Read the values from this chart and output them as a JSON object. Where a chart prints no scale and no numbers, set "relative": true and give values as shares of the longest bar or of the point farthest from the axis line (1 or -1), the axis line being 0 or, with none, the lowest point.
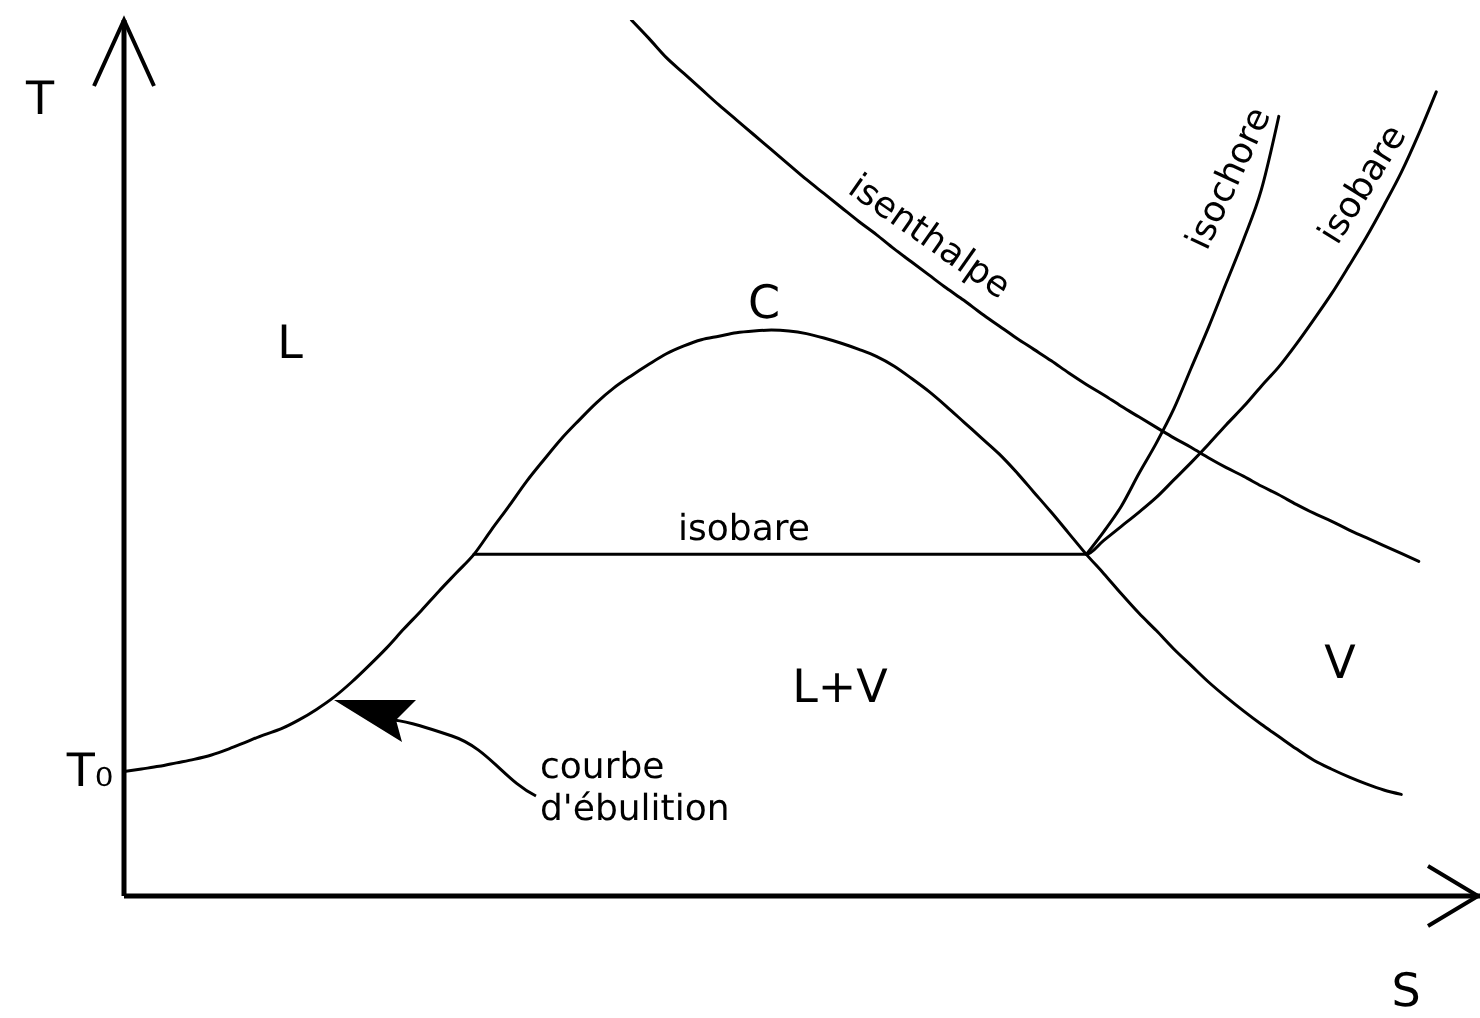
{
  "chart_data": {
    "type": "line",
    "relative": true,
    "xlabel": "S",
    "ylabel": "T",
    "marker": "none",
    "line_style": "solid",
    "categories": [
      null,
      null,
      null,
      null,
      null,
      null,
      null,
      null,
      null,
      null,
      null,
      null,
      null,
      null,
      null,
      null,
      null,
      null,
      null,
      null,
      null,
      null,
      null,
      null,
      null,
      null,
      null,
      null,
      null,
      null,
      null,
      null,
      null,
      null,
      null,
      null,
      null,
      null,
      null,
      null,
      null,
      null,
      null,
      null,
      null,
      null,
      null,
      null,
      null,
      null,
      null,
      null,
      null,
      null,
      null,
      null,
      null,
      null,
      null,
      null,
      null,
      null,
      null,
      null,
      null,
      null,
      null,
      null,
      null,
      null,
      null,
      null,
      null,
      null,
      null,
      null,
      null,
      null
    ],
    "series": [
      {
        "color": "#000000",
        "values": [
          0.142,
          0.145,
          0.148,
          0.152,
          0.156,
          0.161,
          0.168,
          0.176,
          0.184,
          0.191,
          0.201,
          0.213,
          0.227,
          0.244,
          0.263,
          0.283,
          0.305,
          0.326,
          0.348,
          0.369,
          0.39,
          0.418,
          0.445,
          0.473,
          0.498,
          0.522,
          0.543,
          0.563,
          0.58,
          0.594,
          0.607,
          0.619,
          0.628,
          0.635,
          0.639,
          0.643,
          0.645,
          0.646,
          0.645,
          0.642,
          0.637,
          0.631,
          0.624,
          0.616,
          0.605,
          0.591,
          0.576,
          0.559,
          0.541,
          0.523,
          0.505,
          0.484,
          0.461,
          0.438,
          0.414,
          0.39,
          0.368,
          0.345,
          0.323,
          0.303,
          0.282,
          0.263,
          0.244,
          0.227,
          0.211,
          0.196,
          0.182,
          0.168,
          0.155,
          0.145,
          0.136,
          0.128,
          0.121,
          0.116,
          null,
          null,
          null,
          null
        ]
      },
      {
        "name": "isobare",
        "color": "#000000",
        "values": [
          null,
          null,
          null,
          null,
          null,
          null,
          null,
          null,
          null,
          null,
          null,
          null,
          null,
          null,
          null,
          null,
          null,
          null,
          null,
          null,
          0.39,
          0.39,
          0.39,
          0.39,
          0.39,
          0.39,
          0.39,
          0.39,
          0.39,
          0.39,
          0.39,
          0.39,
          0.39,
          0.39,
          0.39,
          0.39,
          0.39,
          0.39,
          0.39,
          0.39,
          0.39,
          0.39,
          0.39,
          0.39,
          0.39,
          0.39,
          0.39,
          0.39,
          0.39,
          0.39,
          0.39,
          0.39,
          0.39,
          0.39,
          0.39,
          0.39,
          0.406,
          0.422,
          0.438,
          0.455,
          0.475,
          0.495,
          0.516,
          0.538,
          0.559,
          0.582,
          0.604,
          0.63,
          0.658,
          0.687,
          0.719,
          0.752,
          0.788,
          0.826,
          0.87,
          0.918,
          null,
          null
        ]
      },
      {
        "name": "isochore",
        "color": "#000000",
        "values": [
          null,
          null,
          null,
          null,
          null,
          null,
          null,
          null,
          null,
          null,
          null,
          null,
          null,
          null,
          null,
          null,
          null,
          null,
          null,
          null,
          null,
          null,
          null,
          null,
          null,
          null,
          null,
          null,
          null,
          null,
          null,
          null,
          null,
          null,
          null,
          null,
          null,
          null,
          null,
          null,
          null,
          null,
          null,
          null,
          null,
          null,
          null,
          null,
          null,
          null,
          null,
          null,
          null,
          null,
          null,
          0.39,
          0.416,
          0.445,
          0.482,
          0.517,
          0.556,
          0.603,
          0.65,
          0.7,
          0.75,
          0.806,
          0.89,
          null,
          null,
          null,
          null,
          null,
          null,
          null,
          null,
          null,
          null,
          null
        ]
      },
      {
        "name": "isenthalpe",
        "color": "#000000",
        "values": [
          null,
          null,
          null,
          null,
          null,
          null,
          null,
          null,
          null,
          null,
          null,
          null,
          null,
          null,
          null,
          null,
          null,
          null,
          null,
          null,
          null,
          null,
          null,
          null,
          null,
          null,
          null,
          null,
          null,
          1.0,
          0.979,
          0.957,
          0.939,
          0.921,
          0.903,
          0.886,
          0.869,
          0.852,
          0.835,
          0.818,
          0.802,
          0.786,
          0.77,
          0.755,
          0.739,
          0.724,
          0.709,
          0.694,
          0.68,
          0.665,
          0.651,
          0.637,
          0.624,
          0.611,
          0.597,
          0.584,
          0.572,
          0.559,
          0.547,
          0.535,
          0.523,
          0.512,
          0.5,
          0.489,
          0.479,
          0.468,
          0.458,
          0.447,
          0.437,
          0.428,
          0.418,
          0.409,
          0.4,
          0.391,
          0.382,
          null,
          null,
          null
        ]
      }
    ],
    "annotations": [
      "T₀",
      "L",
      "C",
      "L+V",
      "V",
      "courbe d'ébulition"
    ]
  }
}
